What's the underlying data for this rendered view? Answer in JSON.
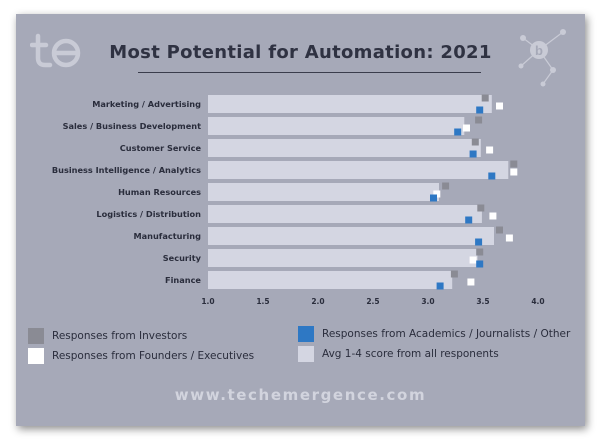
{
  "title": "Most Potential for Automation: 2021",
  "footer": "www.techemergence.com",
  "colors": {
    "background": "#a6a9b8",
    "bar": "#d4d6e2",
    "investors": "#8a8b94",
    "academics": "#2e78c4",
    "founders": "#ffffff",
    "title": "#2f3242"
  },
  "legend": [
    {
      "key": "investors",
      "label": "Responses from Investors"
    },
    {
      "key": "founders",
      "label": "Responses from Founders / Executives"
    },
    {
      "key": "academics",
      "label": "Responses from Academics / Journalists / Other"
    },
    {
      "key": "bar",
      "label": "Avg 1-4 score from all responents"
    }
  ],
  "chart_data": {
    "type": "bar",
    "orientation": "horizontal",
    "categories": [
      "Marketing / Advertising",
      "Sales / Business Development",
      "Customer Service",
      "Business Intelligence / Analytics",
      "Human Resources",
      "Logistics / Distribution",
      "Manufacturing",
      "Security",
      "Finance"
    ],
    "xlim": [
      1.0,
      4.0
    ],
    "xticks": [
      "1.0",
      "1.5",
      "2.0",
      "2.5",
      "3.0",
      "3.5",
      "4.0"
    ],
    "grid": false,
    "series": [
      {
        "name": "Avg 1-4 score from all responents",
        "key": "bar",
        "values": [
          3.58,
          3.33,
          3.48,
          3.73,
          3.1,
          3.49,
          3.6,
          3.45,
          3.22
        ]
      },
      {
        "name": "Responses from Investors",
        "key": "investors",
        "values": [
          3.52,
          3.46,
          3.43,
          3.78,
          3.16,
          3.48,
          3.65,
          3.47,
          3.24
        ]
      },
      {
        "name": "Responses from Academics / Journalists / Other",
        "key": "academics",
        "values": [
          3.47,
          3.27,
          3.41,
          3.58,
          3.05,
          3.37,
          3.46,
          3.47,
          3.11
        ]
      },
      {
        "name": "Responses from Founders / Executives",
        "key": "founders",
        "values": [
          3.65,
          3.35,
          3.56,
          3.78,
          3.08,
          3.59,
          3.74,
          3.41,
          3.39
        ]
      }
    ]
  }
}
